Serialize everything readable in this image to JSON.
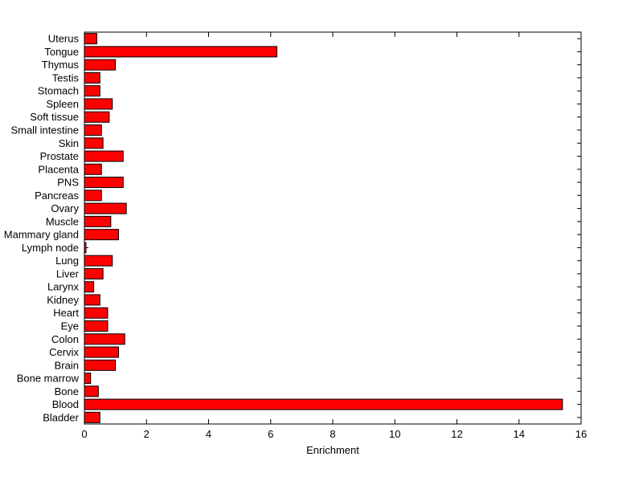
{
  "chart_data": {
    "type": "bar",
    "orientation": "horizontal",
    "title": "",
    "xlabel": "Enrichment",
    "ylabel": "",
    "order": "top-to-bottom",
    "categories": [
      "Uterus",
      "Tongue",
      "Thymus",
      "Testis",
      "Stomach",
      "Spleen",
      "Soft tissue",
      "Small intestine",
      "Skin",
      "Prostate",
      "Placenta",
      "PNS",
      "Pancreas",
      "Ovary",
      "Muscle",
      "Mammary gland",
      "Lymph node",
      "Lung",
      "Liver",
      "Larynx",
      "Kidney",
      "Heart",
      "Eye",
      "Colon",
      "Cervix",
      "Brain",
      "Bone marrow",
      "Bone",
      "Blood",
      "Bladder"
    ],
    "values": [
      0.4,
      6.2,
      1.0,
      0.5,
      0.5,
      0.9,
      0.8,
      0.55,
      0.6,
      1.25,
      0.55,
      1.25,
      0.55,
      1.35,
      0.85,
      1.1,
      0.05,
      0.9,
      0.6,
      0.3,
      0.5,
      0.75,
      0.75,
      1.3,
      1.1,
      1.0,
      0.2,
      0.45,
      15.4,
      0.5
    ],
    "xlim": [
      0,
      16
    ],
    "xticks": [
      0,
      2,
      4,
      6,
      8,
      10,
      12,
      14,
      16
    ],
    "grid": false,
    "legend": null,
    "bar_color": "#ff0000",
    "bar_edge_color": "#000000",
    "axis_color": "#000000",
    "background_color": "#ffffff"
  }
}
